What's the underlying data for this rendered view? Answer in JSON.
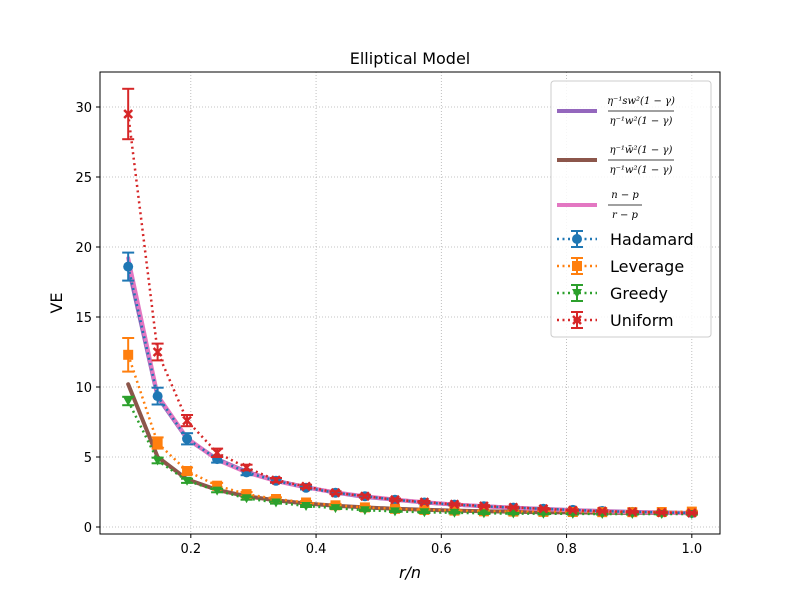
{
  "chart_data": {
    "type": "line",
    "title": "Elliptical Model",
    "xlabel": "r/n",
    "ylabel": "VE",
    "xlim": [
      0.055,
      1.045
    ],
    "ylim": [
      -0.5,
      32.5
    ],
    "xticks": [
      0.2,
      0.4,
      0.6,
      0.8,
      1.0
    ],
    "xtick_labels": [
      "0.2",
      "0.4",
      "0.6",
      "0.8",
      "1.0"
    ],
    "yticks": [
      0,
      5,
      10,
      15,
      20,
      25,
      30
    ],
    "ytick_labels": [
      "0",
      "5",
      "10",
      "15",
      "20",
      "25",
      "30"
    ],
    "grid": true,
    "legend_position": "top-right",
    "x": [
      0.1,
      0.147,
      0.194,
      0.242,
      0.289,
      0.336,
      0.384,
      0.431,
      0.478,
      0.526,
      0.573,
      0.621,
      0.668,
      0.715,
      0.763,
      0.81,
      0.857,
      0.905,
      0.952,
      1.0
    ],
    "theory_series": [
      {
        "name_num": "η⁻¹sw²(1 − γ)",
        "name_den": "η⁻¹w²(1 − γ)",
        "color": "#9467bd",
        "points": [
          [
            0.1,
            18.6
          ],
          [
            0.147,
            9.3
          ],
          [
            0.194,
            6.3
          ],
          [
            0.242,
            4.85
          ],
          [
            0.289,
            3.95
          ],
          [
            0.336,
            3.3
          ],
          [
            0.384,
            2.85
          ],
          [
            0.431,
            2.45
          ],
          [
            0.478,
            2.15
          ],
          [
            0.526,
            1.95
          ],
          [
            0.573,
            1.75
          ],
          [
            0.621,
            1.6
          ],
          [
            0.668,
            1.48
          ],
          [
            0.715,
            1.38
          ],
          [
            0.763,
            1.29
          ],
          [
            0.81,
            1.21
          ],
          [
            0.857,
            1.14
          ],
          [
            0.905,
            1.08
          ],
          [
            0.952,
            1.04
          ],
          [
            1.0,
            1.0
          ]
        ]
      },
      {
        "name_num": "η⁻¹w̄²(1 − γ)",
        "name_den": "η⁻¹w²(1 − γ)",
        "color": "#8c564b",
        "points": [
          [
            0.1,
            10.2
          ],
          [
            0.147,
            5.0
          ],
          [
            0.194,
            3.4
          ],
          [
            0.242,
            2.65
          ],
          [
            0.289,
            2.2
          ],
          [
            0.336,
            1.9
          ],
          [
            0.384,
            1.68
          ],
          [
            0.431,
            1.52
          ],
          [
            0.478,
            1.4
          ],
          [
            0.526,
            1.3
          ],
          [
            0.573,
            1.23
          ],
          [
            0.621,
            1.17
          ],
          [
            0.668,
            1.12
          ],
          [
            0.715,
            1.09
          ],
          [
            0.763,
            1.06
          ],
          [
            0.81,
            1.04
          ],
          [
            0.857,
            1.02
          ],
          [
            0.905,
            1.01
          ],
          [
            0.952,
            1.0
          ],
          [
            1.0,
            1.0
          ]
        ]
      },
      {
        "name_num": "n − p",
        "name_den": "r − p",
        "color": "#e377c2",
        "points": [
          [
            0.1,
            19.2
          ],
          [
            0.147,
            9.4
          ],
          [
            0.194,
            6.35
          ],
          [
            0.242,
            4.8
          ],
          [
            0.289,
            3.9
          ],
          [
            0.336,
            3.28
          ],
          [
            0.384,
            2.82
          ],
          [
            0.431,
            2.47
          ],
          [
            0.478,
            2.19
          ],
          [
            0.526,
            1.96
          ],
          [
            0.573,
            1.77
          ],
          [
            0.621,
            1.61
          ],
          [
            0.668,
            1.48
          ],
          [
            0.715,
            1.37
          ],
          [
            0.763,
            1.27
          ],
          [
            0.81,
            1.19
          ],
          [
            0.857,
            1.12
          ],
          [
            0.905,
            1.06
          ],
          [
            0.952,
            1.02
          ],
          [
            1.0,
            0.98
          ]
        ]
      }
    ],
    "series": [
      {
        "name": "Hadamard",
        "color": "#1f77b4",
        "marker": "circle",
        "values": [
          18.6,
          9.35,
          6.3,
          4.85,
          3.9,
          3.3,
          2.8,
          2.45,
          2.2,
          1.95,
          1.75,
          1.6,
          1.48,
          1.38,
          1.3,
          1.22,
          1.14,
          1.08,
          1.04,
          1.0
        ],
        "err": [
          1.0,
          0.6,
          0.4,
          0.25,
          0.2,
          0.15,
          0.12,
          0.1,
          0.1,
          0.08,
          0.08,
          0.07,
          0.06,
          0.06,
          0.05,
          0.05,
          0.05,
          0.05,
          0.05,
          0.05
        ]
      },
      {
        "name": "Leverage",
        "color": "#ff7f0e",
        "marker": "square",
        "values": [
          12.3,
          6.0,
          4.0,
          2.95,
          2.35,
          2.0,
          1.75,
          1.55,
          1.4,
          1.3,
          1.22,
          1.17,
          1.12,
          1.1,
          1.08,
          1.07,
          1.06,
          1.06,
          1.07,
          1.1
        ],
        "err": [
          1.2,
          0.4,
          0.25,
          0.2,
          0.15,
          0.12,
          0.1,
          0.1,
          0.08,
          0.08,
          0.07,
          0.07,
          0.06,
          0.06,
          0.06,
          0.06,
          0.06,
          0.06,
          0.06,
          0.06
        ]
      },
      {
        "name": "Greedy",
        "color": "#2ca02c",
        "marker": "triangle-down",
        "values": [
          9.0,
          4.75,
          3.3,
          2.6,
          2.05,
          1.75,
          1.5,
          1.35,
          1.2,
          1.12,
          1.05,
          1.02,
          0.98,
          0.96,
          0.95,
          0.94,
          0.93,
          0.93,
          0.93,
          0.93
        ],
        "err": [
          0.3,
          0.2,
          0.15,
          0.12,
          0.1,
          0.08,
          0.07,
          0.06,
          0.05,
          0.05,
          0.05,
          0.05,
          0.05,
          0.05,
          0.05,
          0.05,
          0.05,
          0.05,
          0.05,
          0.05
        ]
      },
      {
        "name": "Uniform",
        "color": "#d62728",
        "marker": "x",
        "values": [
          29.5,
          12.5,
          7.6,
          5.3,
          4.25,
          3.35,
          2.9,
          2.45,
          2.2,
          1.95,
          1.78,
          1.62,
          1.5,
          1.4,
          1.3,
          1.2,
          1.13,
          1.08,
          1.03,
          1.0
        ],
        "err": [
          1.8,
          0.6,
          0.4,
          0.3,
          0.2,
          0.15,
          0.12,
          0.1,
          0.1,
          0.08,
          0.08,
          0.07,
          0.06,
          0.06,
          0.05,
          0.05,
          0.05,
          0.05,
          0.05,
          0.05
        ]
      }
    ]
  }
}
